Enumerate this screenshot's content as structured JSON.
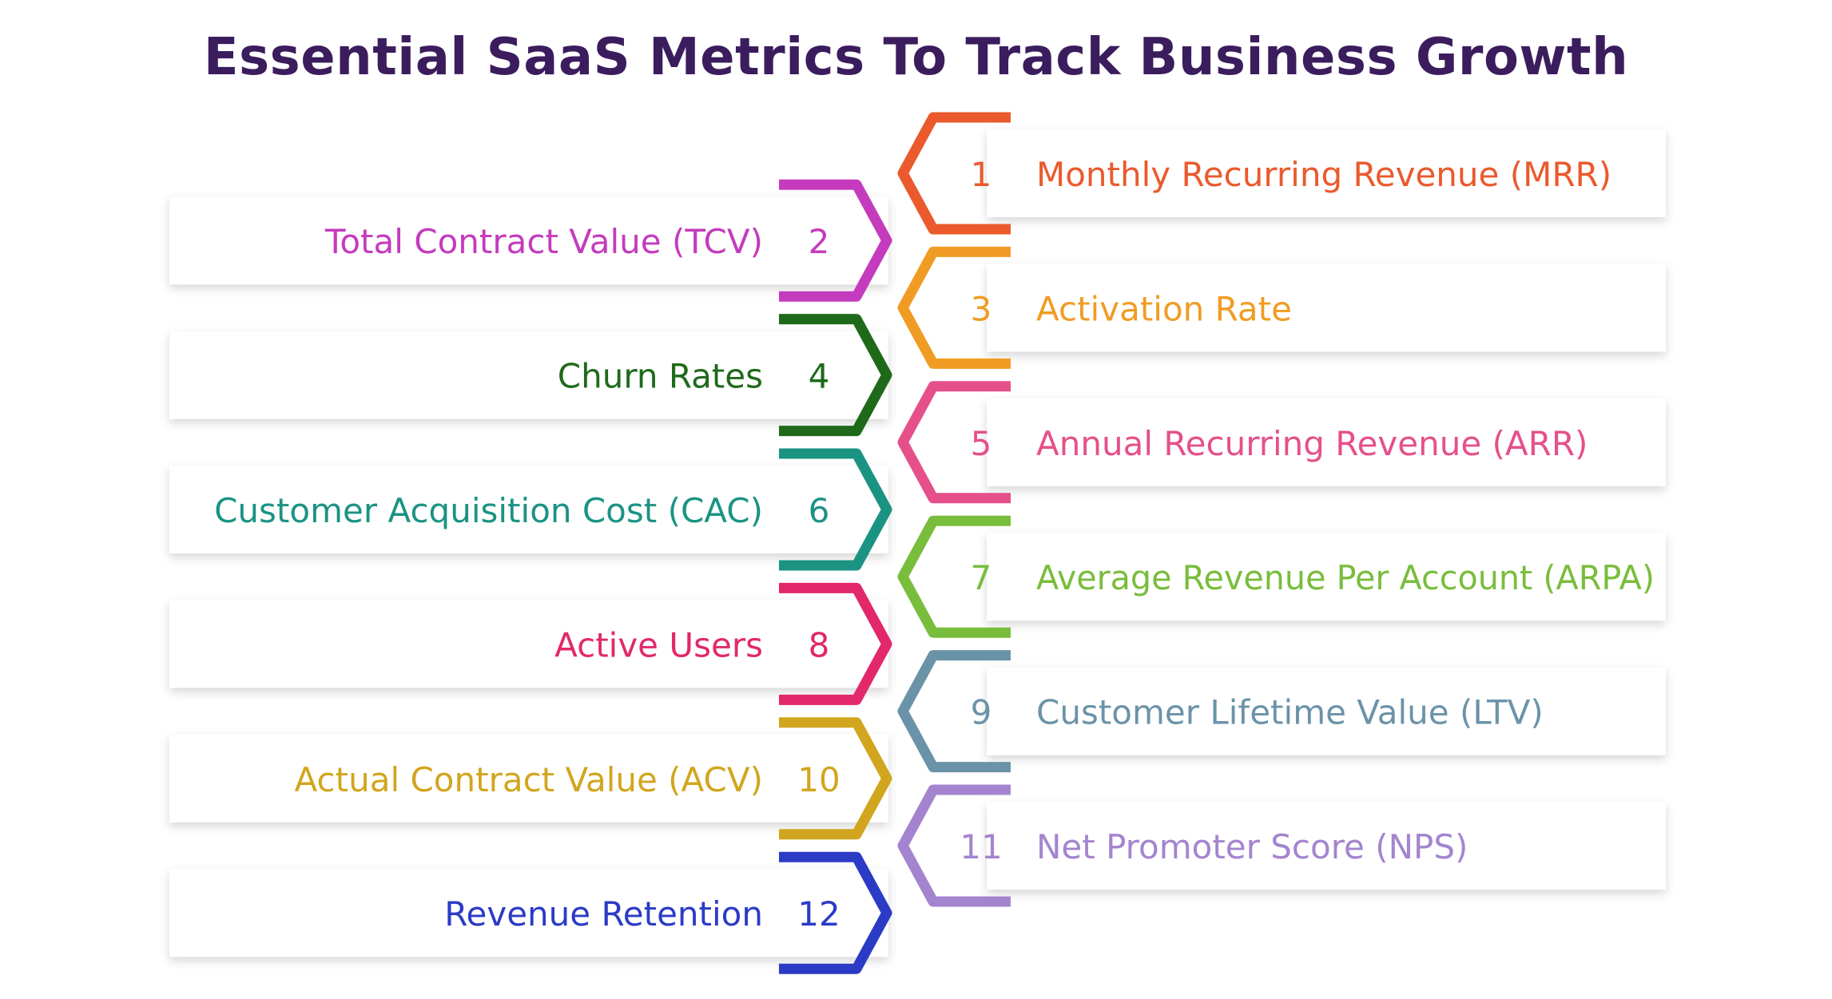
{
  "title": "Essential SaaS Metrics To Track Business Growth",
  "title_color": "#3b1d5e",
  "items": [
    {
      "number": "1",
      "label": "Monthly Recurring Revenue (MRR)",
      "color": "#ea5a2c",
      "side": "right"
    },
    {
      "number": "2",
      "label": "Total Contract Value (TCV)",
      "color": "#c43bbd",
      "side": "left"
    },
    {
      "number": "3",
      "label": "Activation Rate",
      "color": "#f09c24",
      "side": "right"
    },
    {
      "number": "4",
      "label": "Churn Rates",
      "color": "#1f6a1a",
      "side": "left"
    },
    {
      "number": "5",
      "label": "Annual Recurring Revenue (ARR)",
      "color": "#e5508a",
      "side": "right"
    },
    {
      "number": "6",
      "label": "Customer Acquisition Cost (CAC)",
      "color": "#1b9383",
      "side": "left"
    },
    {
      "number": "7",
      "label": "Average Revenue Per Account (ARPA)",
      "color": "#79bd3c",
      "side": "right"
    },
    {
      "number": "8",
      "label": "Active Users",
      "color": "#e2286b",
      "side": "left"
    },
    {
      "number": "9",
      "label": "Customer Lifetime Value (LTV)",
      "color": "#6b93a8",
      "side": "right"
    },
    {
      "number": "10",
      "label": "Actual Contract Value (ACV)",
      "color": "#d1a61e",
      "side": "left"
    },
    {
      "number": "11",
      "label": "Net Promoter Score (NPS)",
      "color": "#a484cf",
      "side": "right"
    },
    {
      "number": "12",
      "label": "Revenue Retention",
      "color": "#2b3bc6",
      "side": "left"
    }
  ]
}
